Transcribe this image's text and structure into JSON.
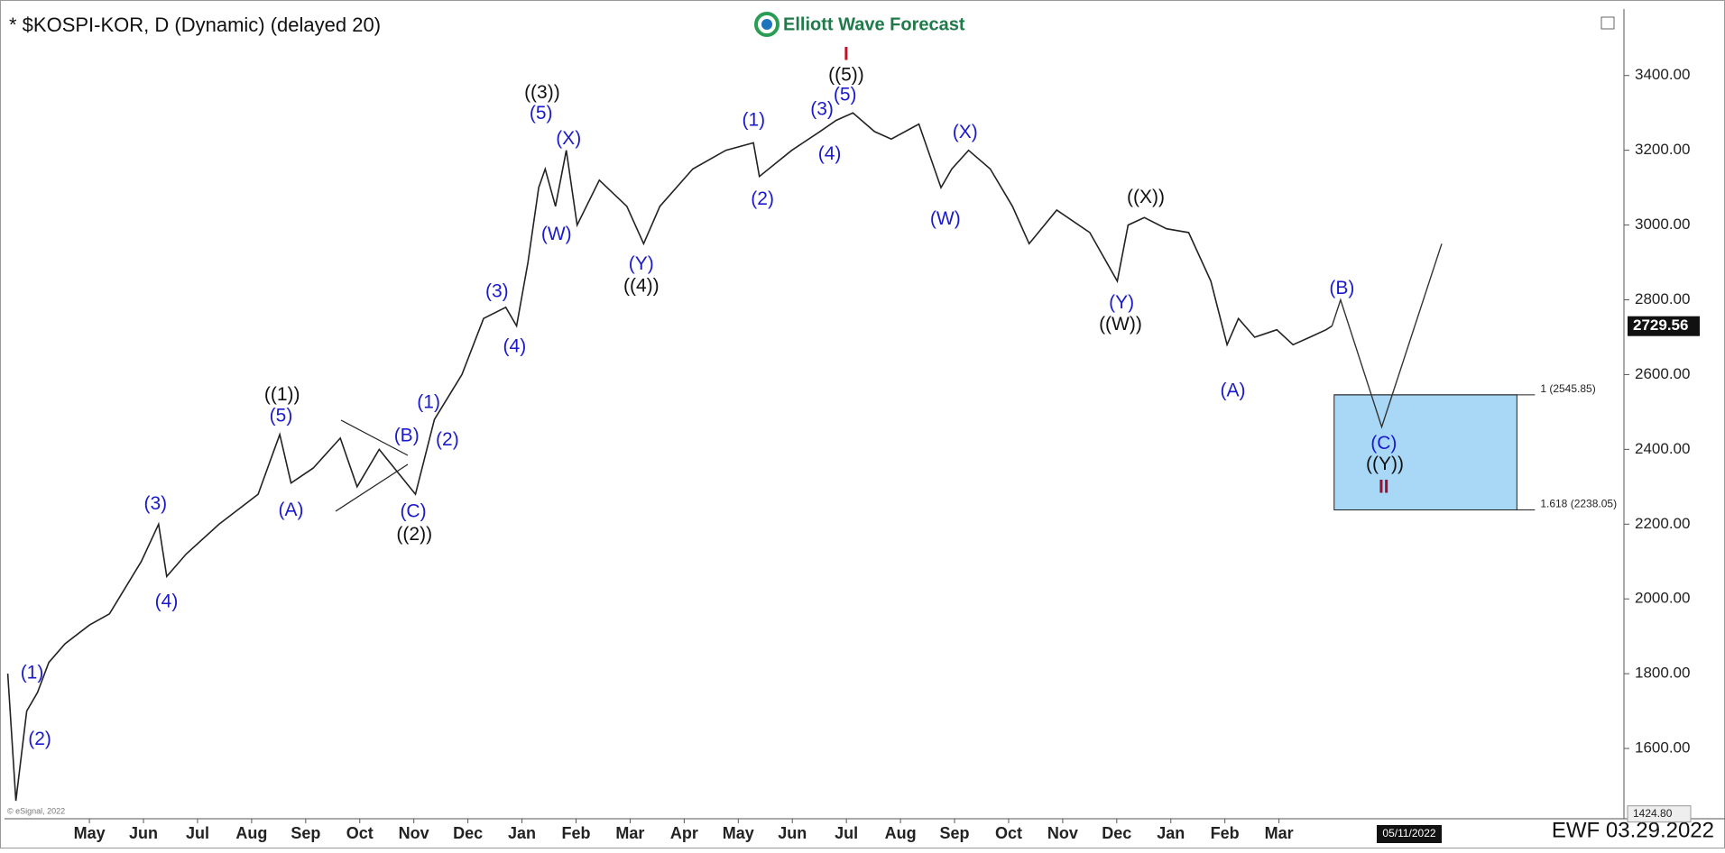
{
  "chart_data": {
    "type": "line",
    "title": "* $KOSPI-KOR, D (Dynamic) (delayed 20)",
    "brand": "Elliott Wave Forecast",
    "footer": "EWF 03.29.2022",
    "source": "© eSignal, 2022",
    "date_marker": "05/11/2022",
    "xlim": [
      -0.57,
      29.38
    ],
    "xticks": [
      {
        "value": 1,
        "label": "May"
      },
      {
        "value": 2,
        "label": "Jun"
      },
      {
        "value": 3,
        "label": "Jul"
      },
      {
        "value": 4,
        "label": "Aug"
      },
      {
        "value": 5,
        "label": "Sep"
      },
      {
        "value": 6,
        "label": "Oct"
      },
      {
        "value": 7,
        "label": "Nov"
      },
      {
        "value": 8,
        "label": "Dec"
      },
      {
        "value": 9,
        "label": "Jan"
      },
      {
        "value": 10,
        "label": "Feb"
      },
      {
        "value": 11,
        "label": "Mar"
      },
      {
        "value": 12,
        "label": "Apr"
      },
      {
        "value": 13,
        "label": "May"
      },
      {
        "value": 14,
        "label": "Jun"
      },
      {
        "value": 15,
        "label": "Jul"
      },
      {
        "value": 16,
        "label": "Aug"
      },
      {
        "value": 17,
        "label": "Sep"
      },
      {
        "value": 18,
        "label": "Oct"
      },
      {
        "value": 19,
        "label": "Nov"
      },
      {
        "value": 20,
        "label": "Dec"
      },
      {
        "value": 21,
        "label": "Jan"
      },
      {
        "value": 22,
        "label": "Feb"
      },
      {
        "value": 23,
        "label": "Mar"
      }
    ],
    "ylim": [
      1412,
      3573
    ],
    "yticks": [
      {
        "value": 1600,
        "label": "1600.00"
      },
      {
        "value": 1800,
        "label": "1800.00"
      },
      {
        "value": 2000,
        "label": "2000.00"
      },
      {
        "value": 2200,
        "label": "2200.00"
      },
      {
        "value": 2400,
        "label": "2400.00"
      },
      {
        "value": 2600,
        "label": "2600.00"
      },
      {
        "value": 2800,
        "label": "2800.00"
      },
      {
        "value": 3000,
        "label": "3000.00"
      },
      {
        "value": 3200,
        "label": "3200.00"
      },
      {
        "value": 3400,
        "label": "3400.00"
      }
    ],
    "last_price": 2729.56,
    "low_price": {
      "value": 1424.8,
      "label": "1424.80"
    },
    "series": [
      {
        "color": "#222222",
        "x": [
          -0.51,
          -0.36,
          -0.16,
          0.04,
          0.25,
          0.55,
          1.0,
          1.37,
          1.96,
          2.28,
          2.43,
          2.79,
          3.4,
          4.12,
          4.52,
          4.73,
          5.14,
          5.64,
          5.95,
          6.36,
          7.03,
          7.38,
          7.89,
          8.29,
          8.7,
          8.9,
          9.11,
          9.31,
          9.43,
          9.62,
          9.82,
          10.02,
          10.43,
          10.94,
          11.25,
          11.55,
          12.16,
          12.77,
          13.28,
          13.39,
          13.99,
          14.51,
          14.81,
          15.12,
          15.52,
          15.83,
          16.34,
          16.75,
          16.95,
          17.26,
          17.66,
          18.07,
          18.38,
          18.89,
          19.5,
          20.01,
          20.21,
          20.51,
          20.92,
          21.33,
          21.74,
          22.04,
          22.25,
          22.55,
          22.96,
          23.26,
          23.57,
          23.87,
          23.98
        ],
        "values": [
          1800,
          1460,
          1700,
          1750,
          1830,
          1880,
          1930,
          1960,
          2100,
          2200,
          2060,
          2120,
          2200,
          2280,
          2440,
          2310,
          2350,
          2430,
          2300,
          2400,
          2280,
          2480,
          2600,
          2750,
          2780,
          2730,
          2900,
          3100,
          3150,
          3050,
          3200,
          3000,
          3120,
          3050,
          2950,
          3050,
          3150,
          3200,
          3220,
          3130,
          3200,
          3250,
          3280,
          3300,
          3250,
          3230,
          3270,
          3100,
          3150,
          3200,
          3150,
          3050,
          2950,
          3040,
          2980,
          2850,
          3000,
          3020,
          2990,
          2980,
          2850,
          2680,
          2750,
          2700,
          2720,
          2680,
          2700,
          2720,
          2730
        ]
      },
      {
        "color": "#333333",
        "x": [
          23.98,
          24.14,
          24.9,
          26.01
        ],
        "values": [
          2730,
          2800,
          2460,
          2950
        ]
      }
    ],
    "target_box": {
      "color": "#a9d8f7",
      "x": [
        24.02,
        27.4
      ],
      "levels": [
        {
          "value": 2545.85,
          "label": "1 (2545.85)"
        },
        {
          "value": 2238.05,
          "label": "1.618 (2238.05)"
        }
      ]
    },
    "annotations": [
      {
        "text": "(1)",
        "color": "#1a1acc"
      },
      {
        "text": "(2)",
        "color": "#1a1acc"
      },
      {
        "text": "(3)",
        "color": "#1a1acc"
      },
      {
        "text": "(4)",
        "color": "#1a1acc"
      },
      {
        "text": "(5)",
        "color": "#1a1acc"
      },
      {
        "text": "(A)",
        "color": "#1a1acc"
      },
      {
        "text": "(B)",
        "color": "#1a1acc"
      },
      {
        "text": "(C)",
        "color": "#1a1acc"
      },
      {
        "text": "(1)",
        "color": "#1a1acc"
      },
      {
        "text": "(2)",
        "color": "#1a1acc"
      },
      {
        "text": "(3)",
        "color": "#1a1acc"
      },
      {
        "text": "(4)",
        "color": "#1a1acc"
      },
      {
        "text": "(5)",
        "color": "#1a1acc"
      },
      {
        "text": "(X)",
        "color": "#1a1acc"
      },
      {
        "text": "(W)",
        "color": "#1a1acc"
      },
      {
        "text": "(Y)",
        "color": "#1a1acc"
      },
      {
        "text": "(1)",
        "color": "#1a1acc"
      },
      {
        "text": "(2)",
        "color": "#1a1acc"
      },
      {
        "text": "(3)",
        "color": "#1a1acc"
      },
      {
        "text": "(4)",
        "color": "#1a1acc"
      },
      {
        "text": "(5)",
        "color": "#1a1acc"
      },
      {
        "text": "(X)",
        "color": "#1a1acc"
      },
      {
        "text": "(W)",
        "color": "#1a1acc"
      },
      {
        "text": "(Y)",
        "color": "#1a1acc"
      },
      {
        "text": "(A)",
        "color": "#1a1acc"
      },
      {
        "text": "(B)",
        "color": "#1a1acc"
      },
      {
        "text": "(C)",
        "color": "#1a1acc"
      },
      {
        "text": "((1))",
        "color": "#111111"
      },
      {
        "text": "((2))",
        "color": "#111111"
      },
      {
        "text": "((3))",
        "color": "#111111"
      },
      {
        "text": "((4))",
        "color": "#111111"
      },
      {
        "text": "((5))",
        "color": "#111111"
      },
      {
        "text": "((X))",
        "color": "#111111"
      },
      {
        "text": "((W))",
        "color": "#111111"
      },
      {
        "text": "((Y))",
        "color": "#111111"
      },
      {
        "text": "I",
        "color": "#c0142a"
      },
      {
        "text": "II",
        "color": "#9b1030"
      }
    ]
  }
}
